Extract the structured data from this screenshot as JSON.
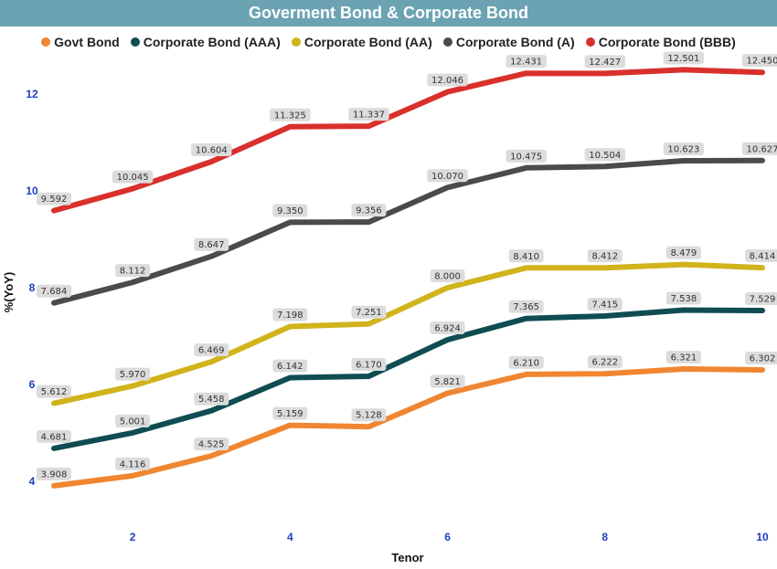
{
  "title": "Goverment Bond & Corporate Bond",
  "chart_data": {
    "type": "line",
    "title": "Goverment Bond & Corporate Bond",
    "xlabel": "Tenor",
    "ylabel": "%(YoY)",
    "x": [
      1,
      2,
      3,
      4,
      5,
      6,
      7,
      8,
      9,
      10
    ],
    "x_ticks": [
      2,
      4,
      6,
      8,
      10
    ],
    "y_ticks": [
      4,
      6,
      8,
      10,
      12
    ],
    "xlim": [
      1,
      10
    ],
    "ylim": [
      3.0,
      13.0
    ],
    "legend_position": "top",
    "grid": false,
    "series": [
      {
        "name": "Govt Bond",
        "color": "#f08631",
        "values": [
          3.908,
          4.116,
          4.525,
          5.159,
          5.128,
          5.821,
          6.21,
          6.222,
          6.321,
          6.302
        ],
        "labels": [
          "3.908",
          "4.116",
          "4.525",
          "5.159",
          "5.128",
          "5.821",
          "6.210",
          "6.222",
          "6.321",
          "6.302"
        ]
      },
      {
        "name": "Corporate Bond (AAA)",
        "color": "#0f4d52",
        "values": [
          4.681,
          5.001,
          5.458,
          6.142,
          6.17,
          6.924,
          7.365,
          7.415,
          7.538,
          7.529
        ],
        "labels": [
          "4.681",
          "5.001",
          "5.458",
          "6.142",
          "6.170",
          "6.924",
          "7.365",
          "7.415",
          "7.538",
          "7.529"
        ]
      },
      {
        "name": "Corporate Bond (AA)",
        "color": "#d1b31c",
        "values": [
          5.612,
          5.97,
          6.469,
          7.198,
          7.251,
          8.0,
          8.41,
          8.412,
          8.479,
          8.414
        ],
        "labels": [
          "5.612",
          "5.970",
          "6.469",
          "7.198",
          "7.251",
          "8.000",
          "8.410",
          "8.412",
          "8.479",
          "8.414"
        ]
      },
      {
        "name": "Corporate Bond (A)",
        "color": "#4b4b4b",
        "values": [
          7.684,
          8.112,
          8.647,
          9.35,
          9.356,
          10.07,
          10.475,
          10.504,
          10.623,
          10.627
        ],
        "labels": [
          "7.684",
          "8.112",
          "8.647",
          "9.350",
          "9.356",
          "10.070",
          "10.475",
          "10.504",
          "10.623",
          "10.627"
        ]
      },
      {
        "name": "Corporate Bond (BBB)",
        "color": "#d9302c",
        "values": [
          9.592,
          10.045,
          10.604,
          11.325,
          11.337,
          12.046,
          12.431,
          12.427,
          12.501,
          12.45
        ],
        "labels": [
          "9.592",
          "10.045",
          "10.604",
          "11.325",
          "11.337",
          "12.046",
          "12.431",
          "12.427",
          "12.501",
          "12.450"
        ]
      }
    ]
  }
}
